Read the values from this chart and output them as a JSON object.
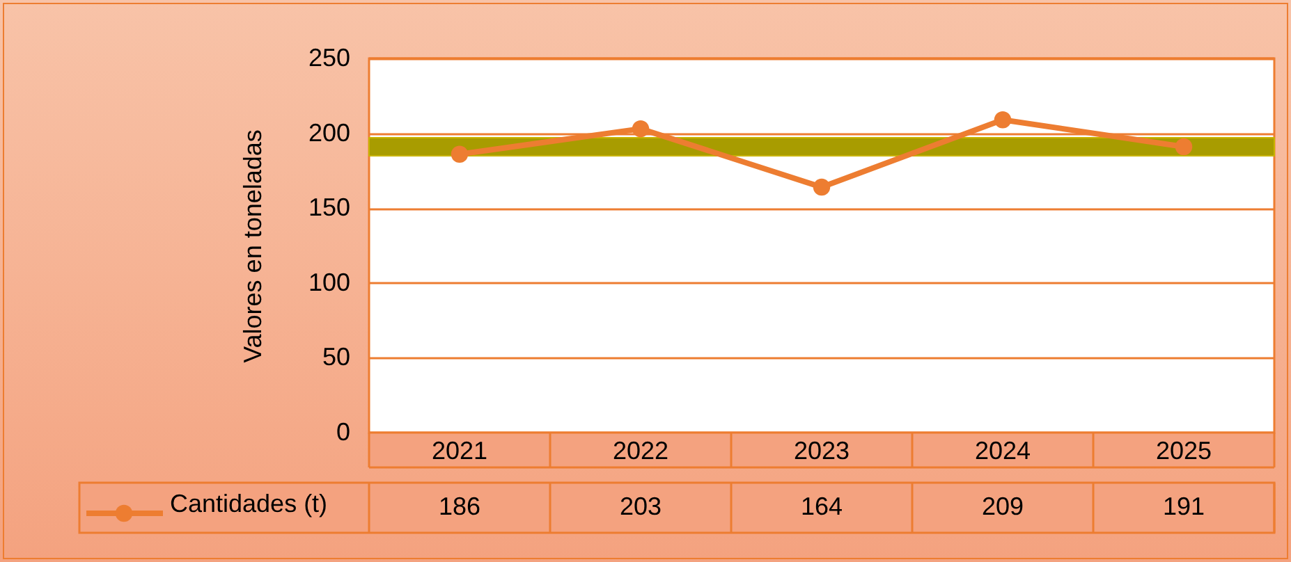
{
  "chart_data": {
    "type": "line",
    "ylabel": "Valores en toneladas",
    "categories": [
      "2021",
      "2022",
      "2023",
      "2024",
      "2025"
    ],
    "series": [
      {
        "name": "Cantidades (t)",
        "color": "#ed7d31",
        "values": [
          186,
          203,
          164,
          209,
          191
        ]
      }
    ],
    "ylim": [
      0,
      250
    ],
    "yticks": [
      0,
      50,
      100,
      150,
      200,
      250
    ],
    "grid": "y",
    "marker": "circle",
    "data_labels": true,
    "bands": [
      {
        "axis": "y",
        "from": 185,
        "to": 197,
        "color": "#a89c00"
      }
    ]
  }
}
